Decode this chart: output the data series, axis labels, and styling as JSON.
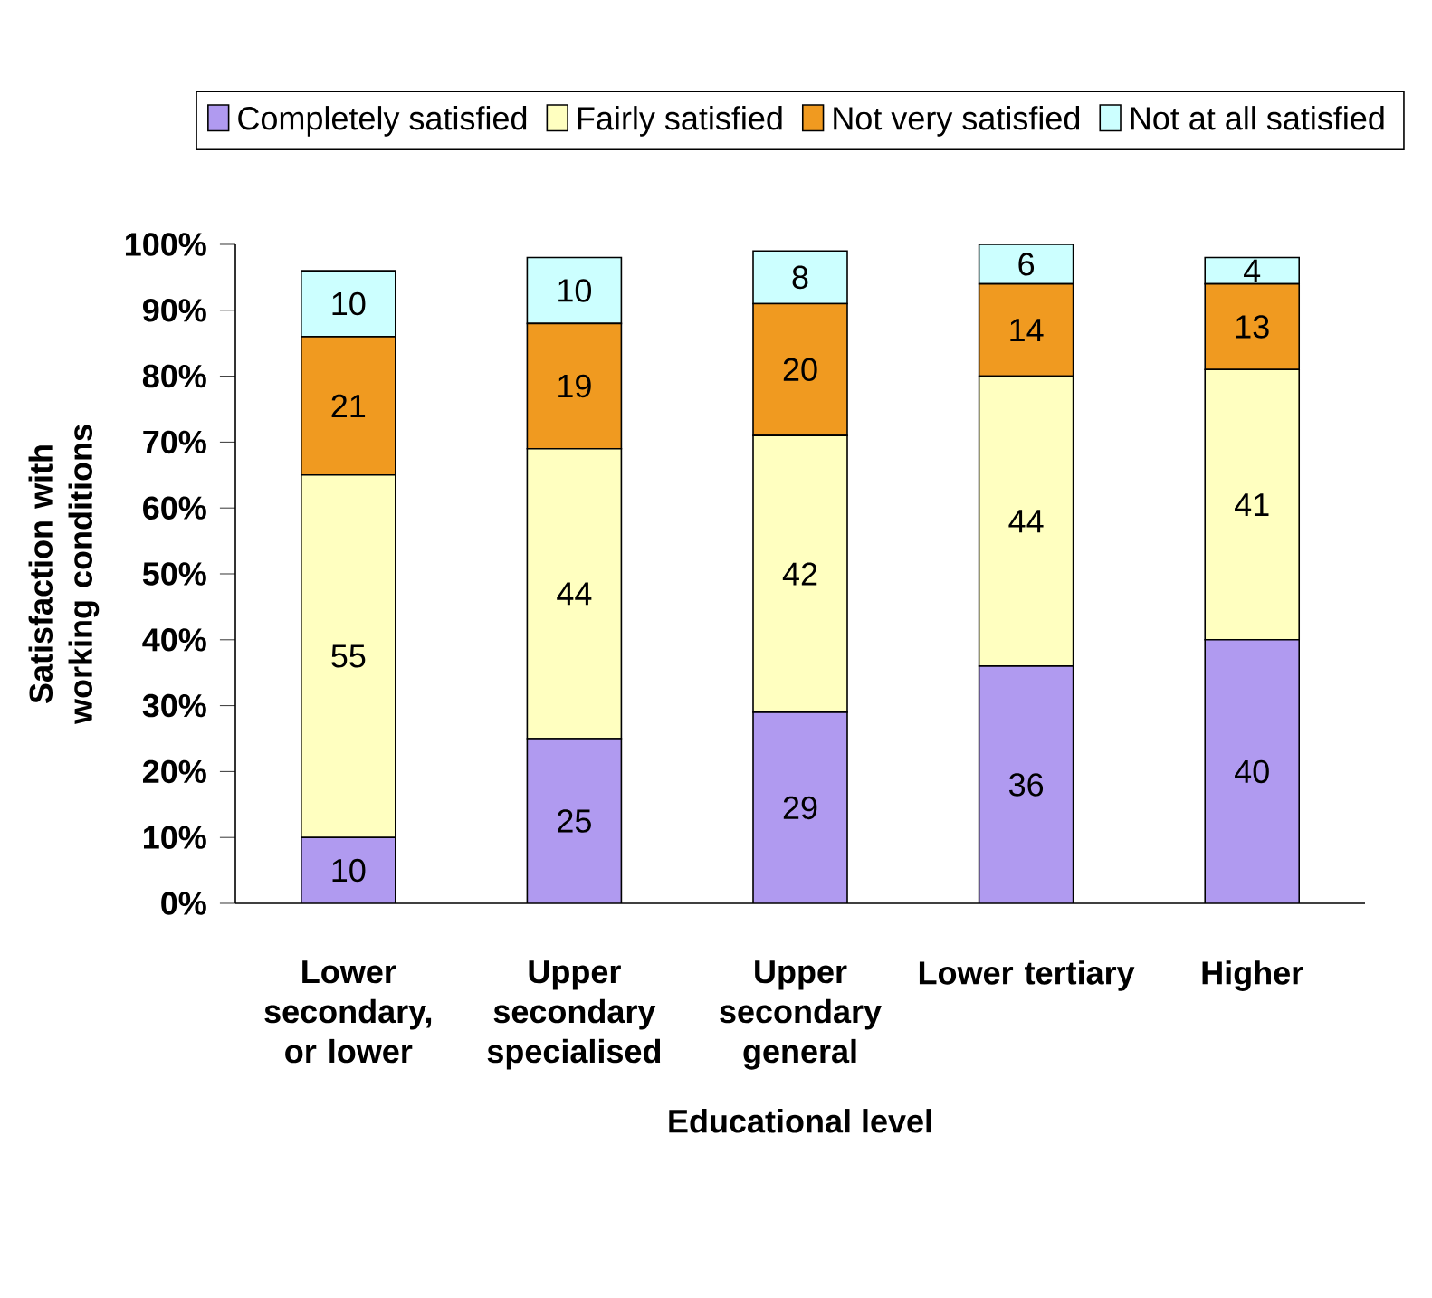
{
  "chart_data": {
    "type": "bar",
    "stacked": true,
    "xlabel": "Educational level",
    "ylabel": "Satisfaction with working conditions",
    "categories": [
      "Lower secondary, or lower",
      "Upper secondary specialised",
      "Upper secondary general",
      "Lower tertiary",
      "Higher"
    ],
    "series": [
      {
        "name": "Completely satisfied",
        "color": "#b09af0",
        "values": [
          10,
          25,
          29,
          36,
          40
        ]
      },
      {
        "name": "Fairly satisfied",
        "color": "#ffffc0",
        "values": [
          55,
          44,
          42,
          44,
          41
        ]
      },
      {
        "name": "Not very satisfied",
        "color": "#f09a20",
        "values": [
          21,
          19,
          20,
          14,
          13
        ]
      },
      {
        "name": "Not at all satisfied",
        "color": "#ccffff",
        "values": [
          10,
          10,
          8,
          6,
          4
        ]
      }
    ],
    "ylim": [
      0,
      100
    ],
    "yticks": [
      {
        "value": 0,
        "label": "0%"
      },
      {
        "value": 10,
        "label": "10%"
      },
      {
        "value": 20,
        "label": "20%"
      },
      {
        "value": 30,
        "label": "30%"
      },
      {
        "value": 40,
        "label": "40%"
      },
      {
        "value": 50,
        "label": "50%"
      },
      {
        "value": 60,
        "label": "60%"
      },
      {
        "value": 70,
        "label": "70%"
      },
      {
        "value": 80,
        "label": "80%"
      },
      {
        "value": 90,
        "label": "90%"
      },
      {
        "value": 100,
        "label": "100%"
      }
    ],
    "data_labels": true,
    "legend": "top",
    "grid": false
  }
}
